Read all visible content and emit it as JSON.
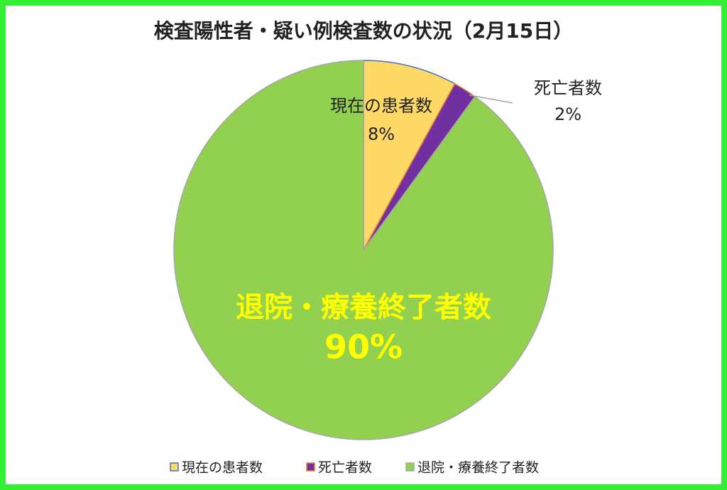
{
  "chart_data": {
    "type": "pie",
    "title": "検査陽性者・疑い例検査数の状況（2月15日）",
    "categories": [
      "現在の患者数",
      "死亡者数",
      "退院・療養終了者数"
    ],
    "values": [
      8,
      2,
      90
    ],
    "value_labels": [
      "8%",
      "2%",
      "90%"
    ],
    "colors": [
      "#FFD966",
      "#7030A0",
      "#92D050"
    ],
    "edge_colors": [
      "#4472C4",
      "#ED7D31",
      "#A5A5A5"
    ],
    "legend": "bottom"
  }
}
